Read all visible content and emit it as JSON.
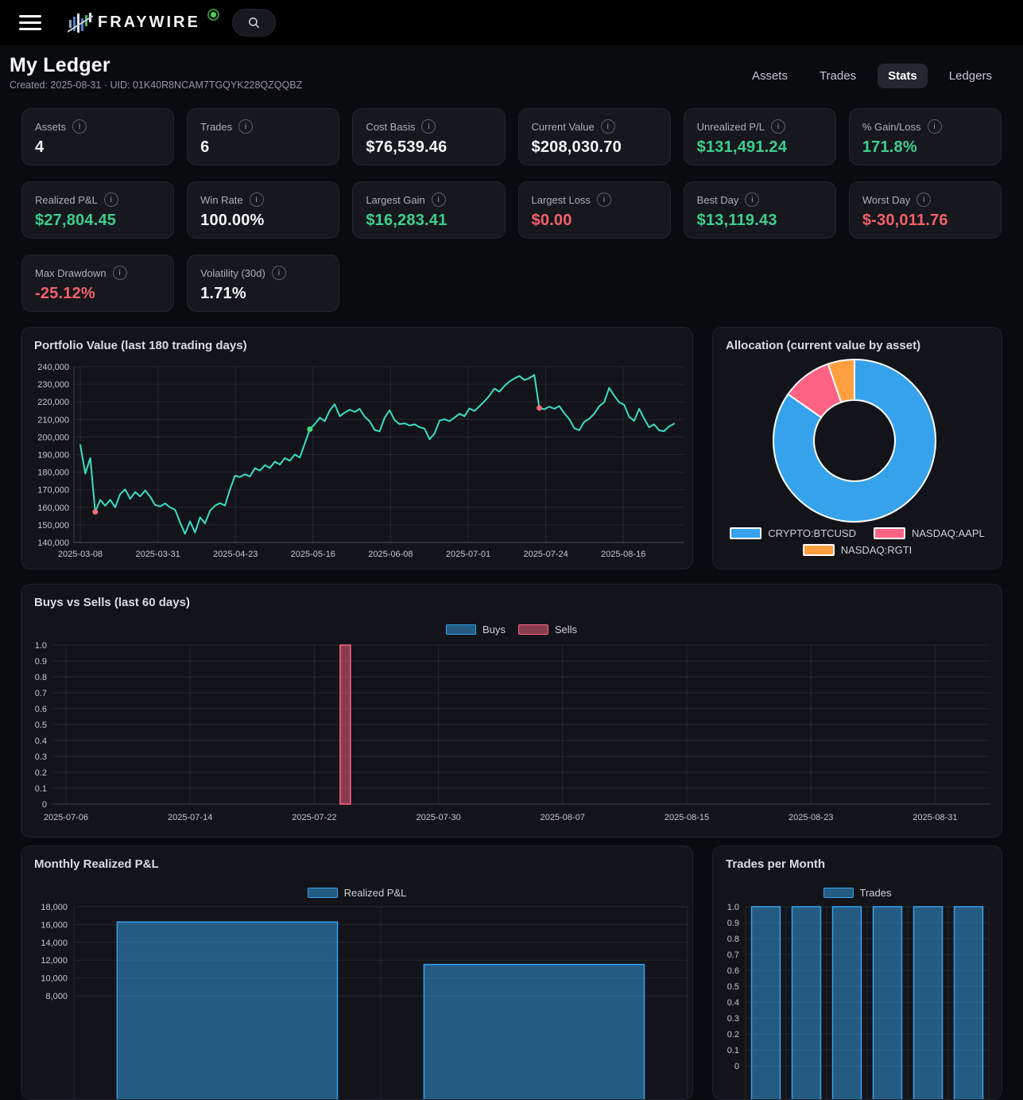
{
  "header": {
    "brand": "FRAYWIRE",
    "search_tooltip": "Search"
  },
  "page": {
    "title": "My Ledger",
    "subtitle": "Created: 2025-08-31 · UID: 01K40R8NCAM7TGQYK228QZQQBZ"
  },
  "nav": {
    "tabs": [
      {
        "label": "Assets",
        "active": false
      },
      {
        "label": "Trades",
        "active": false
      },
      {
        "label": "Stats",
        "active": true
      },
      {
        "label": "Ledgers",
        "active": false
      }
    ]
  },
  "stats": {
    "info_glyph": "i",
    "cards": [
      {
        "label": "Assets",
        "value": "4",
        "tone": "default"
      },
      {
        "label": "Trades",
        "value": "6",
        "tone": "default"
      },
      {
        "label": "Cost Basis",
        "value": "$76,539.46",
        "tone": "default"
      },
      {
        "label": "Current Value",
        "value": "$208,030.70",
        "tone": "default"
      },
      {
        "label": "Unrealized P/L",
        "value": "$131,491.24",
        "tone": "green"
      },
      {
        "label": "% Gain/Loss",
        "value": "171.8%",
        "tone": "green"
      },
      {
        "label": "Realized P&L",
        "value": "$27,804.45",
        "tone": "green"
      },
      {
        "label": "Win Rate",
        "value": "100.00%",
        "tone": "default"
      },
      {
        "label": "Largest Gain",
        "value": "$16,283.41",
        "tone": "green"
      },
      {
        "label": "Largest Loss",
        "value": "$0.00",
        "tone": "red"
      },
      {
        "label": "Best Day",
        "value": "$13,119.43",
        "tone": "green"
      },
      {
        "label": "Worst Day",
        "value": "$-30,011.76",
        "tone": "red"
      },
      {
        "label": "Max Drawdown",
        "value": "-25.12%",
        "tone": "red"
      },
      {
        "label": "Volatility (30d)",
        "value": "1.71%",
        "tone": "default"
      }
    ]
  },
  "colors": {
    "accent_green": "#3ecf8e",
    "accent_red": "#f3606c",
    "chart_blue": "#36a2eb",
    "chart_blue_fill": "rgba(54,162,235,0.5)",
    "chart_pink": "#ff6384",
    "chart_pink_fill": "rgba(255,99,132,0.5)",
    "chart_orange": "#ff9f40",
    "chart_teal": "#3bdec3"
  },
  "chart_data": {
    "portfolio_value": {
      "type": "line",
      "title": "Portfolio Value (last 180 trading days)",
      "line_color": "#3bdec3",
      "ylim": [
        140000,
        240000
      ],
      "y_ticks": [
        240000,
        230000,
        220000,
        210000,
        200000,
        190000,
        180000,
        170000,
        160000,
        150000,
        140000
      ],
      "x_tick_labels": [
        "2025-03-08",
        "2025-03-31",
        "2025-04-23",
        "2025-05-16",
        "2025-06-08",
        "2025-07-01",
        "2025-07-24",
        "2025-08-16"
      ],
      "grid": true,
      "values": [
        195500,
        179200,
        188000,
        157400,
        164200,
        160900,
        164300,
        160000,
        167500,
        170200,
        164800,
        168700,
        166200,
        169600,
        166000,
        161300,
        160500,
        162200,
        159900,
        158600,
        151400,
        144900,
        152000,
        145600,
        154300,
        150800,
        158000,
        160900,
        162400,
        161000,
        170000,
        178000,
        177200,
        178800,
        177500,
        182200,
        180900,
        184000,
        182300,
        186000,
        184300,
        188000,
        186500,
        190000,
        188300,
        196400,
        204400,
        207300,
        211000,
        209000,
        215200,
        218600,
        211800,
        213900,
        215500,
        214200,
        216000,
        211500,
        208900,
        204000,
        203200,
        211000,
        215200,
        209500,
        207300,
        207800,
        206500,
        207200,
        205500,
        204800,
        198700,
        202000,
        209300,
        210100,
        209000,
        211000,
        213200,
        211800,
        216200,
        214800,
        217500,
        220300,
        223500,
        227500,
        225800,
        229000,
        231500,
        233300,
        234700,
        232400,
        233500,
        235300,
        216500,
        215800,
        217300,
        216000,
        217600,
        213500,
        210200,
        205000,
        203800,
        208600,
        210400,
        213200,
        217400,
        219800,
        227900,
        223500,
        219800,
        218300,
        211500,
        209200,
        216000,
        210500,
        205500,
        207200,
        203800,
        203300,
        206000,
        207500
      ],
      "markers": [
        {
          "index": 3,
          "color": "#f06d72"
        },
        {
          "index": 46,
          "color": "#4ad97f"
        },
        {
          "index": 92,
          "color": "#f06d72"
        }
      ]
    },
    "allocation": {
      "type": "pie",
      "title": "Allocation (current value by asset)",
      "donut": true,
      "segment_border_color": "#ffffff",
      "segments": [
        {
          "label": "CRYPTO:BTCUSD",
          "percent": 84.7,
          "color": "#36a2eb"
        },
        {
          "label": "NASDAQ:AAPL",
          "percent": 10.0,
          "color": "#ff6384"
        },
        {
          "label": "NASDAQ:RGTI",
          "percent": 5.3,
          "color": "#ff9f40"
        }
      ],
      "legend_position": "bottom"
    },
    "buys_vs_sells": {
      "type": "bar",
      "title": "Buys vs Sells (last 60 days)",
      "ylim": [
        0,
        1
      ],
      "y_tick_step": 0.1,
      "x_tick_labels": [
        "2025-07-06",
        "2025-07-14",
        "2025-07-22",
        "2025-07-30",
        "2025-08-07",
        "2025-08-15",
        "2025-08-23",
        "2025-08-31"
      ],
      "legend_position": "top",
      "series": [
        {
          "name": "Buys",
          "color": "#36a2eb",
          "fill": "rgba(54,162,235,0.5)",
          "bars": []
        },
        {
          "name": "Sells",
          "color": "#ff6384",
          "fill": "rgba(255,99,132,0.5)",
          "bars": [
            {
              "date": "2025-07-24",
              "value": 1
            }
          ]
        }
      ]
    },
    "monthly_realized_pnl": {
      "type": "bar",
      "title": "Monthly Realized P&L",
      "legend_label": "Realized P&L",
      "color": "#36a2eb",
      "fill": "rgba(54,162,235,0.5)",
      "y_ticks": [
        18000,
        16000,
        14000,
        12000,
        10000,
        8000
      ],
      "ymax": 18000,
      "values": [
        16283.41,
        11521.04
      ],
      "x_labels_visible": false
    },
    "trades_per_month": {
      "type": "bar",
      "title": "Trades per Month",
      "legend_label": "Trades",
      "color": "#36a2eb",
      "fill": "rgba(54,162,235,0.5)",
      "ylim": [
        0,
        1
      ],
      "y_tick_step": 0.1,
      "values": [
        1,
        1,
        1,
        1,
        1,
        1
      ],
      "x_labels_visible": false
    }
  }
}
